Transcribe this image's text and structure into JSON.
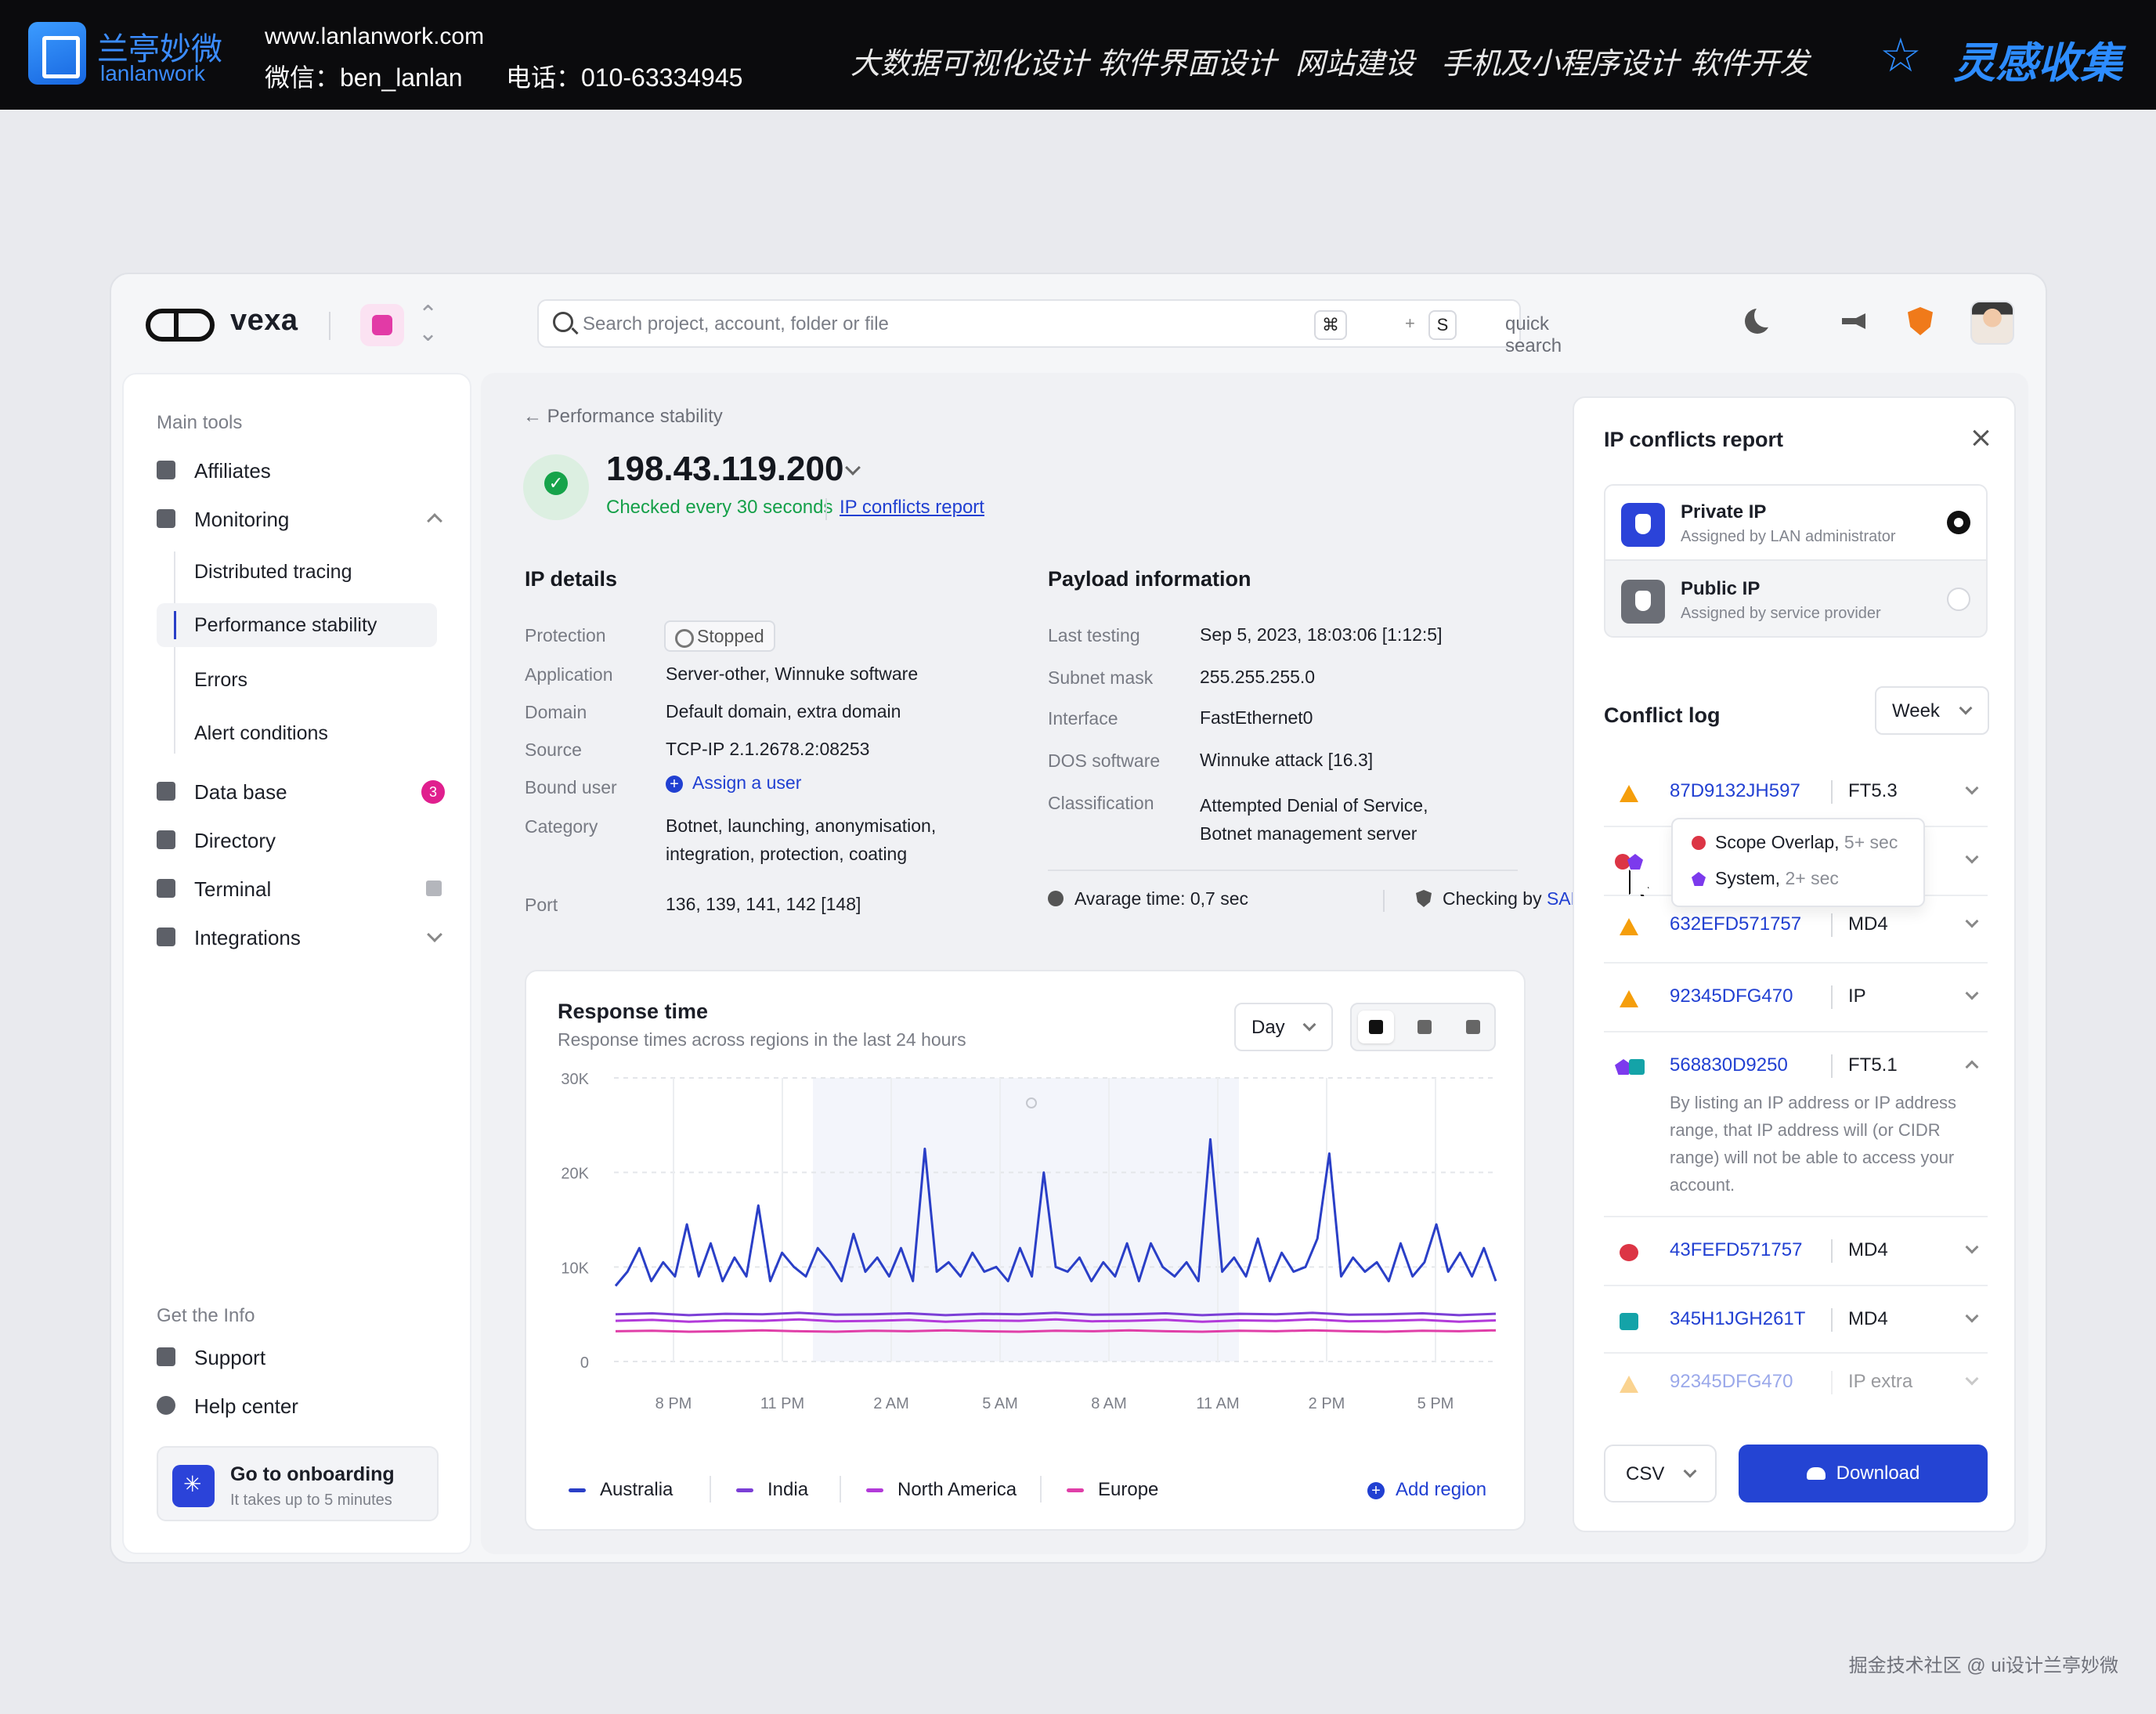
{
  "banner": {
    "brand_cn": "兰亭妙微",
    "brand_en": "lanlanwork",
    "site": "www.lanlanwork.com",
    "wechat": "微信：ben_lanlan",
    "phone": "电话：010-63334945",
    "nav": [
      "大数据可视化设计",
      "软件界面设计",
      "网站建设",
      "手机及小程序设计",
      "软件开发"
    ],
    "inspiration": "灵感收集"
  },
  "watermark": "掘金技术社区 @ ui设计兰亭妙微",
  "app": {
    "name": "vexa",
    "search": {
      "placeholder": "Search project, account, folder or file",
      "key1": "⌘",
      "plus": "+",
      "key2": "S",
      "hint": "quick search"
    }
  },
  "sidebar": {
    "main_tools_label": "Main tools",
    "items": {
      "affiliates": "Affiliates",
      "monitoring": "Monitoring",
      "distributed_tracing": "Distributed tracing",
      "performance_stability": "Performance stability",
      "errors": "Errors",
      "alert_conditions": "Alert conditions",
      "database": "Data base",
      "database_badge": "3",
      "directory": "Directory",
      "terminal": "Terminal",
      "integrations": "Integrations"
    },
    "info_label": "Get the Info",
    "support": "Support",
    "help_center": "Help center",
    "onboarding": {
      "title": "Go to onboarding",
      "subtitle": "It takes up to 5 minutes"
    }
  },
  "main": {
    "breadcrumb": "Performance stability",
    "ip": "198.43.119.200",
    "check_status": "Checked every 30 seconds",
    "report_link": "IP conflicts report",
    "ip_details": {
      "title": "IP details",
      "protection_label": "Protection",
      "protection_value": "Stopped",
      "application_label": "Application",
      "application_value": "Server-other, Winnuke software",
      "domain_label": "Domain",
      "domain_value": "Default domain, extra domain",
      "source_label": "Source",
      "source_value": "TCP-IP 2.1.2678.2:08253",
      "bound_user_label": "Bound user",
      "bound_user_action": "Assign a user",
      "category_label": "Category",
      "category_value_1": "Botnet, launching, anonymisation,",
      "category_value_2": "integration, protection, coating",
      "port_label": "Port",
      "port_value": "136, 139, 141, 142 [148]"
    },
    "payload": {
      "title": "Payload information",
      "last_testing_label": "Last testing",
      "last_testing_value": "Sep 5, 2023, 18:03:06 [1:12:5]",
      "subnet_label": "Subnet mask",
      "subnet_value": "255.255.255.0",
      "interface_label": "Interface",
      "interface_value": "FastEthernet0",
      "dos_label": "DOS software",
      "dos_value": "Winnuke attack [16.3]",
      "classification_label": "Classification",
      "classification_value_1": "Attempted Denial of Service,",
      "classification_value_2": "Botnet management server",
      "avg_time": "Avarage time: 0,7 sec",
      "checking_prefix": "Checking by",
      "checking_by": "SAF.IO"
    }
  },
  "chart_card": {
    "day_select": "Day",
    "add_region": "Add region"
  },
  "chart_data": {
    "type": "line",
    "title": "Response time",
    "subtitle": "Response times across regions in the last 24 hours",
    "xlabel": "",
    "ylabel": "",
    "y_ticks": [
      "30K",
      "20K",
      "10K",
      "0"
    ],
    "ylim": [
      0,
      30000
    ],
    "x_ticks": [
      "8 PM",
      "11 PM",
      "2 AM",
      "5 AM",
      "8 AM",
      "11 AM",
      "2 PM",
      "5 PM"
    ],
    "grid": true,
    "legend_position": "bottom",
    "series": [
      {
        "name": "Australia",
        "color": "#2a3fc7",
        "values": [
          8000,
          9500,
          12000,
          8500,
          10500,
          9000,
          14500,
          9000,
          12500,
          8500,
          11000,
          9000,
          16500,
          8500,
          11500,
          10000,
          9000,
          12000,
          10500,
          8500,
          13500,
          9500,
          11000,
          9000,
          12000,
          8500,
          22500,
          9500,
          10500,
          9000,
          11500,
          9500,
          10000,
          8500,
          12000,
          9000,
          20000,
          10000,
          9500,
          11000,
          8500,
          10500,
          9000,
          12500,
          8500,
          12500,
          10000,
          9000,
          10500,
          8500,
          23500,
          9500,
          11000,
          9000,
          13000,
          8500,
          11500,
          9500,
          10000,
          13000,
          22000,
          9000,
          11000,
          9500,
          10500,
          8500,
          12500,
          9000,
          10500,
          14500,
          9500,
          11500,
          9000,
          12000,
          8500
        ]
      },
      {
        "name": "India",
        "color": "#7b3fd6",
        "values": [
          5000,
          5100,
          4900,
          5050,
          5000,
          5150,
          4950,
          5000,
          5100,
          4900,
          5050,
          5000,
          5150,
          4950,
          5000,
          5100,
          4900,
          5050,
          5000,
          5150,
          4950,
          5000,
          5100,
          4900,
          5050
        ]
      },
      {
        "name": "North America",
        "color": "#b23ad9",
        "values": [
          4300,
          4400,
          4200,
          4350,
          4300,
          4450,
          4250,
          4300,
          4400,
          4200,
          4350,
          4300,
          4450,
          4250,
          4300,
          4400,
          4200,
          4350,
          4300,
          4450,
          4250,
          4300,
          4400,
          4200,
          4350
        ]
      },
      {
        "name": "Europe",
        "color": "#e03fa8",
        "values": [
          3200,
          3250,
          3150,
          3200,
          3300,
          3200,
          3150,
          3250,
          3200,
          3300,
          3200,
          3150,
          3250,
          3200,
          3300,
          3200,
          3150,
          3250,
          3200,
          3300,
          3200,
          3150,
          3250,
          3200,
          3300
        ]
      }
    ]
  },
  "right_panel": {
    "title": "IP conflicts report",
    "private_ip": {
      "title": "Private IP",
      "subtitle": "Assigned by LAN administrator"
    },
    "public_ip": {
      "title": "Public IP",
      "subtitle": "Assigned by service provider"
    },
    "conflict_log_title": "Conflict log",
    "week_select": "Week",
    "tooltip": {
      "row1_label": "Scope Overlap,",
      "row1_time": "5+ sec",
      "row2_label": "System,",
      "row2_time": "2+ sec"
    },
    "logs": [
      {
        "id": "87D9132JH597",
        "type": "FT5.3"
      },
      {
        "id": "632EFD571757",
        "type": "MD4"
      },
      {
        "id": "92345DFG470",
        "type": "IP"
      },
      {
        "id": "568830D9250",
        "type": "FT5.1",
        "description": "By listing an IP address or IP address range, that IP address will (or CIDR range) will not be able to access your account."
      },
      {
        "id": "43FEFD571757",
        "type": "MD4"
      },
      {
        "id": "345H1JGH261T",
        "type": "MD4"
      },
      {
        "id": "92345DFG470",
        "type": "IP extra"
      }
    ],
    "csv_select": "CSV",
    "download": "Download"
  }
}
